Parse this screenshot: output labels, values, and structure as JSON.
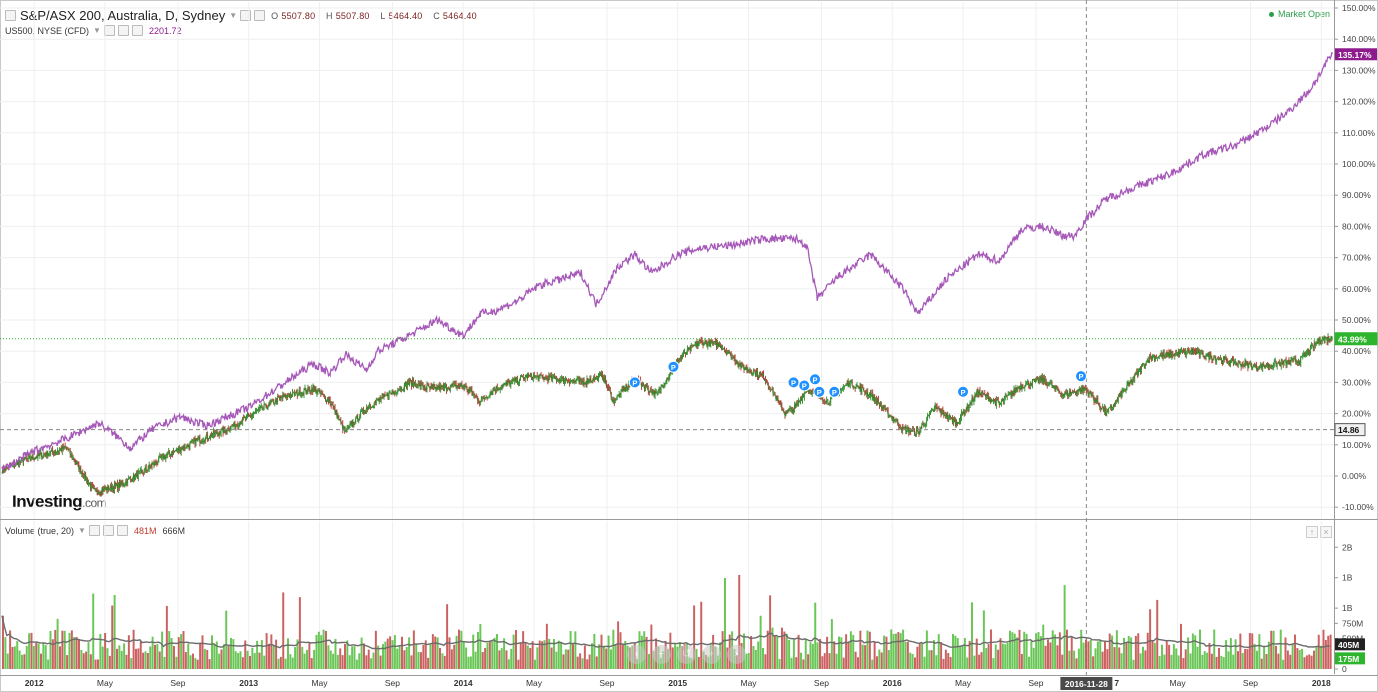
{
  "header": {
    "symbol": "S&P/ASX 200, Australia, D, Sydney",
    "ohlc": {
      "o_label": "O",
      "o": "5507.80",
      "h_label": "H",
      "h": "5507.80",
      "l_label": "L",
      "l": "5464.40",
      "c_label": "C",
      "c": "5464.40"
    },
    "compare_symbol": "US500, NYSE (CFD)",
    "compare_value": "2201.72",
    "market_status": "Market Open"
  },
  "volume_header": {
    "label": "Volume (true, 20)",
    "value1": "481M",
    "value2": "666M"
  },
  "brand": {
    "name": "Investing",
    "suffix": ".com"
  },
  "crosshair_date": "2016-11-28",
  "colors": {
    "us500": "#a658b8",
    "asx": "#2f8a2a",
    "up": "#4cbf3a",
    "down": "#c94848",
    "accent": "#8e1b8e",
    "price_tag": "#2db52d"
  },
  "icons": {
    "nav": [
      "zoom-out-icon",
      "minus-icon",
      "reset-icon",
      "plus-icon",
      "zoom-in-icon"
    ],
    "pane": [
      "arrow-up-icon",
      "close-icon"
    ]
  },
  "chart_data": [
    {
      "type": "line",
      "title": "S&P/ASX 200, Australia, D, Sydney",
      "x_ticks": [
        "2012",
        "May",
        "Sep",
        "2013",
        "May",
        "Sep",
        "2014",
        "May",
        "Sep",
        "2015",
        "May",
        "Sep",
        "2016",
        "May",
        "Sep",
        "2016-11-28",
        "May",
        "Sep",
        "2018"
      ],
      "y_ticks": [
        "150.00%",
        "140.00%",
        "130.00%",
        "120.00%",
        "110.00%",
        "100.00%",
        "90.00%",
        "80.00%",
        "70.00%",
        "60.00%",
        "50.00%",
        "40.00%",
        "30.00%",
        "20.00%",
        "10.00%",
        "0.00%",
        "-10.00%"
      ],
      "ylim": [
        -12,
        152
      ],
      "series": [
        {
          "name": "US500",
          "color": "#a658b8",
          "last_label": "135.17%",
          "x": [
            2011.85,
            2012.0,
            2012.15,
            2012.3,
            2012.38,
            2012.45,
            2012.55,
            2012.68,
            2012.8,
            2012.9,
            2013.0,
            2013.15,
            2013.3,
            2013.38,
            2013.45,
            2013.55,
            2013.6,
            2013.72,
            2013.8,
            2013.88,
            2014.0,
            2014.08,
            2014.15,
            2014.25,
            2014.35,
            2014.45,
            2014.55,
            2014.62,
            2014.72,
            2014.8,
            2014.88,
            2015.0,
            2015.1,
            2015.25,
            2015.4,
            2015.55,
            2015.6,
            2015.65,
            2015.75,
            2015.9,
            2016.05,
            2016.12,
            2016.25,
            2016.4,
            2016.5,
            2016.6,
            2016.7,
            2016.8,
            2016.85,
            2016.9,
            2017.0,
            2017.15,
            2017.3,
            2017.45,
            2017.6,
            2017.75,
            2017.85,
            2017.95,
            2018.05
          ],
          "y": [
            2,
            8,
            12,
            17,
            13,
            9,
            15,
            19,
            16,
            19,
            22,
            29,
            36,
            33,
            39,
            34,
            40,
            44,
            47,
            50,
            45,
            52,
            53,
            56,
            61,
            63,
            65,
            55,
            67,
            71,
            65,
            71,
            73,
            74,
            76,
            76,
            74,
            57,
            64,
            71,
            60,
            52,
            63,
            71,
            69,
            79,
            80,
            77,
            77,
            82,
            89,
            93,
            97,
            103,
            106,
            112,
            117,
            124,
            135.17
          ]
        },
        {
          "name": "S&P/ASX 200",
          "color": "#2f8a2a",
          "last_label": "43.99%",
          "x": [
            2011.85,
            2011.95,
            2012.05,
            2012.15,
            2012.28,
            2012.4,
            2012.5,
            2012.6,
            2012.75,
            2012.9,
            2013.0,
            2013.15,
            2013.3,
            2013.38,
            2013.45,
            2013.55,
            2013.65,
            2013.75,
            2013.85,
            2014.0,
            2014.08,
            2014.15,
            2014.3,
            2014.45,
            2014.55,
            2014.65,
            2014.7,
            2014.8,
            2014.9,
            2015.0,
            2015.1,
            2015.2,
            2015.3,
            2015.4,
            2015.5,
            2015.55,
            2015.6,
            2015.7,
            2015.8,
            2015.9,
            2016.05,
            2016.12,
            2016.2,
            2016.3,
            2016.4,
            2016.5,
            2016.6,
            2016.7,
            2016.8,
            2016.9,
            2017.0,
            2017.2,
            2017.4,
            2017.55,
            2017.7,
            2017.8,
            2017.9,
            2018.0,
            2018.05
          ],
          "y": [
            2,
            5,
            7,
            9,
            -5,
            -3,
            1,
            6,
            11,
            15,
            19,
            25,
            28,
            24,
            14,
            22,
            26,
            30,
            28,
            29,
            24,
            28,
            32,
            31,
            30,
            32,
            24,
            31,
            26,
            37,
            43,
            42,
            35,
            32,
            20,
            22,
            28,
            24,
            30,
            26,
            15,
            14,
            22,
            17,
            27,
            23,
            29,
            31,
            26,
            28,
            20,
            38,
            40,
            37,
            35,
            36,
            37,
            44,
            43.99
          ]
        }
      ],
      "horizontal_lines": [
        {
          "value": 43.99,
          "label": "43.99%",
          "style": "dotted",
          "color": "#2db52d"
        },
        {
          "value": 14.86,
          "label": "14.86",
          "style": "dashed",
          "color": "#888888"
        }
      ],
      "event_markers": {
        "label": "P",
        "x": [
          2014.8,
          2014.98,
          2015.54,
          2015.59,
          2015.64,
          2015.66,
          2015.73,
          2016.33,
          2016.88
        ],
        "y": [
          30,
          35,
          30,
          29,
          31,
          27,
          27,
          27,
          32
        ]
      },
      "grid": true
    },
    {
      "type": "bar",
      "title": "Volume (true, 20)",
      "y_ticks": [
        "2B",
        "1B",
        "1B",
        "750M",
        "500M",
        "0"
      ],
      "last_labels": [
        "405M",
        "175M"
      ],
      "ylim": [
        0,
        2300
      ],
      "moving_average_period": 20,
      "value_range_millions": [
        150,
        1900
      ]
    }
  ]
}
